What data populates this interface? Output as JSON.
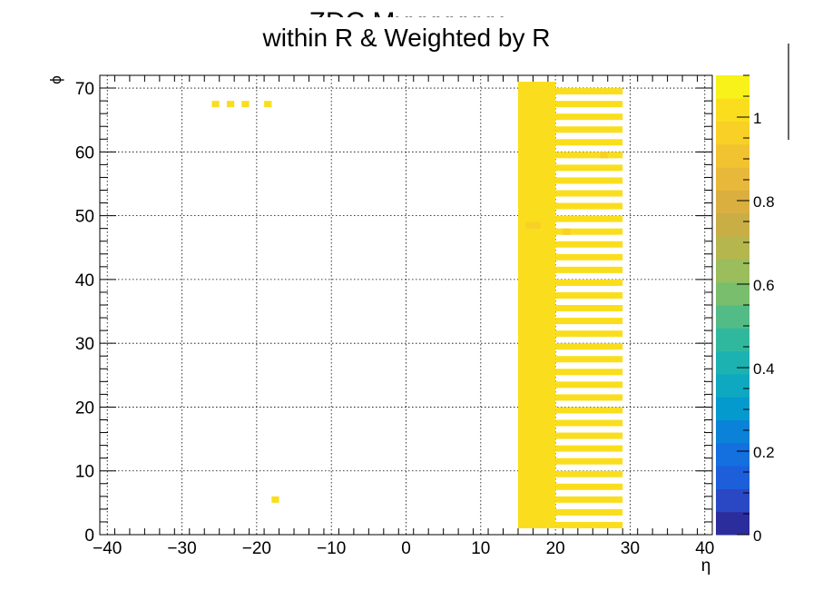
{
  "chart_data": {
    "type": "heatmap",
    "title_partial": "ZDC Mxxxxxxxx",
    "title": "within R & Weighted by R",
    "xlabel": "η",
    "ylabel": "ϕ",
    "xlim": [
      -41,
      41
    ],
    "ylim": [
      0,
      72
    ],
    "x_ticks": [
      -40,
      -30,
      -20,
      -10,
      0,
      10,
      20,
      30,
      40
    ],
    "x_tick_labels": [
      "−40",
      "−30",
      "−20",
      "−10",
      "0",
      "10",
      "20",
      "30",
      "40"
    ],
    "y_ticks": [
      0,
      10,
      20,
      30,
      40,
      50,
      60,
      70
    ],
    "y_tick_labels": [
      "0",
      "10",
      "20",
      "30",
      "40",
      "50",
      "60",
      "70"
    ],
    "grid": true,
    "colorbar": {
      "zlim": [
        0,
        1.1
      ],
      "ticks": [
        0,
        0.2,
        0.4,
        0.6,
        0.8,
        1
      ],
      "tick_labels": [
        "0",
        "0.2",
        "0.4",
        "0.6",
        "0.8",
        "1"
      ],
      "palette": [
        "#2c2d9c",
        "#2a48c4",
        "#1d5fdb",
        "#146fdf",
        "#0a82d8",
        "#049acd",
        "#0ea8c1",
        "#1cb2b2",
        "#30b89e",
        "#53bc86",
        "#79be6c",
        "#9bbd5b",
        "#b6b64f",
        "#c9ae45",
        "#daaf3f",
        "#e8b83a",
        "#f2c330",
        "#f8d026",
        "#fade1d",
        "#f9f11a"
      ]
    },
    "cells": [
      {
        "x0": -26,
        "x1": -25,
        "y0": 67,
        "y1": 68,
        "z": 1
      },
      {
        "x0": -24,
        "x1": -23,
        "y0": 67,
        "y1": 68,
        "z": 1
      },
      {
        "x0": -22,
        "x1": -21,
        "y0": 67,
        "y1": 68,
        "z": 1
      },
      {
        "x0": -19,
        "x1": -18,
        "y0": 67,
        "y1": 68,
        "z": 1
      },
      {
        "x0": -18,
        "x1": -17,
        "y0": 5,
        "y1": 6,
        "z": 1
      },
      {
        "x0": 15,
        "x1": 20,
        "y0": 1,
        "y1": 71,
        "z": 1
      },
      {
        "x0": 16,
        "x1": 18,
        "y0": 48,
        "y1": 49,
        "z": 0.95
      },
      {
        "x0": 21,
        "x1": 22,
        "y0": 47,
        "y1": 48,
        "z": 0.95
      },
      {
        "x0": 26,
        "x1": 27,
        "y0": 59,
        "y1": 60,
        "z": 0.95
      }
    ],
    "striped_block": {
      "x0": 20,
      "x1": 29,
      "y0": 1,
      "y1": 70,
      "z": 1
    }
  }
}
